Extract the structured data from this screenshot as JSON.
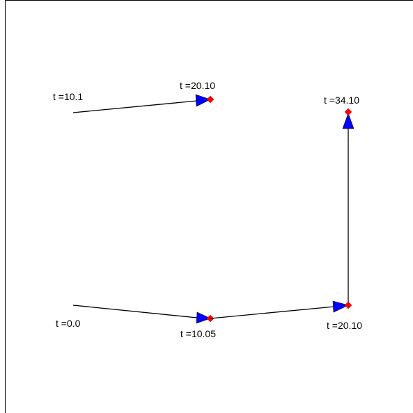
{
  "diagram": {
    "colors": {
      "line": "#000000",
      "arrow_fill": "#0000ff",
      "marker_fill": "#ff0000",
      "background": "#ffffff"
    },
    "labels": {
      "upper_start": "t =10.1",
      "upper_end": "t =20.10",
      "right_top": "t =34.10",
      "lower_start": "t =0.0",
      "lower_mid": "t =10.05",
      "lower_right": "t =20.10"
    }
  }
}
